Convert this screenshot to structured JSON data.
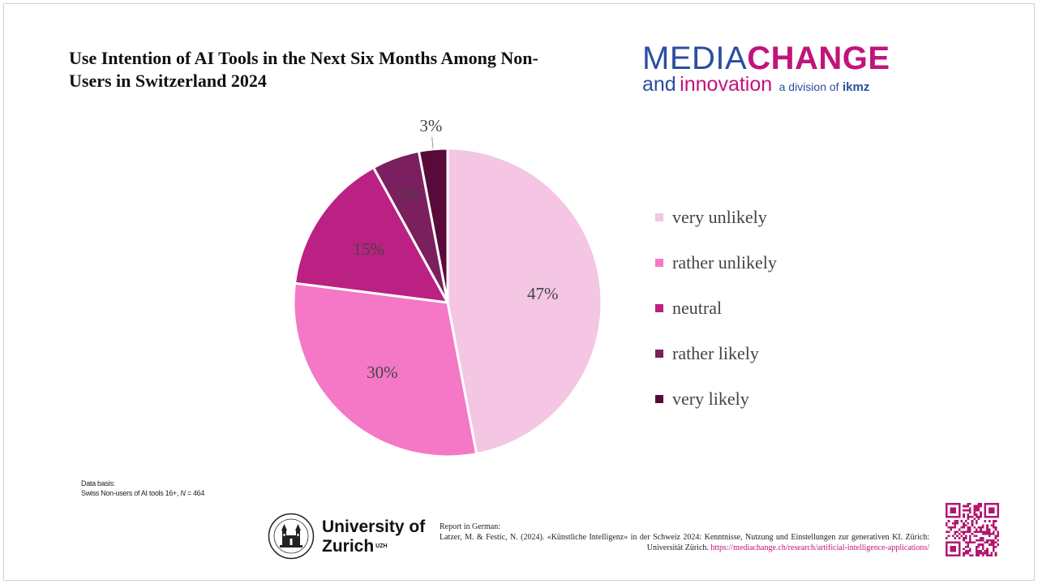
{
  "title": "Use Intention of AI Tools in the Next Six Months Among Non-Users in Switzerland 2024",
  "logo": {
    "word1": "MEDIA",
    "word2": "CHANGE",
    "word3": "and",
    "word4": "innovation",
    "division_prefix": "a division of",
    "division_name": "ikmz"
  },
  "chart_data": {
    "type": "pie",
    "title": "Use Intention of AI Tools in the Next Six Months Among Non-Users in Switzerland 2024",
    "categories": [
      "very unlikely",
      "rather unlikely",
      "neutral",
      "rather likely",
      "very likely"
    ],
    "values": [
      47,
      30,
      15,
      5,
      3
    ],
    "labels": [
      "47%",
      "30%",
      "15%",
      "5%",
      "3%"
    ],
    "unit": "%",
    "colors": [
      "#f4c6e3",
      "#f478c6",
      "#bb2182",
      "#7b1f5f",
      "#5a0a38"
    ],
    "legend_position": "right"
  },
  "data_basis": {
    "label": "Data basis:",
    "text_prefix": "Swiss Non-users of AI tools 16+, ",
    "n_symbol": "N",
    "n_text": " = 464"
  },
  "university": {
    "line1": "University of",
    "line2": "Zurich",
    "superscript": "UZH"
  },
  "report": {
    "heading": "Report in German:",
    "citation": "Latzer, M. & Festic, N. (2024). «Künstliche Intelligenz» in der Schweiz 2024: Kenntnisse, Nutzung und Einstellungen zur generativen KI. Zürich: Universität Zürich.",
    "link": "https://mediachange.ch/research/artificial-intelligence-applications/"
  },
  "colors": {
    "brand_blue": "#2b4ea0",
    "brand_magenta": "#c2137c"
  }
}
